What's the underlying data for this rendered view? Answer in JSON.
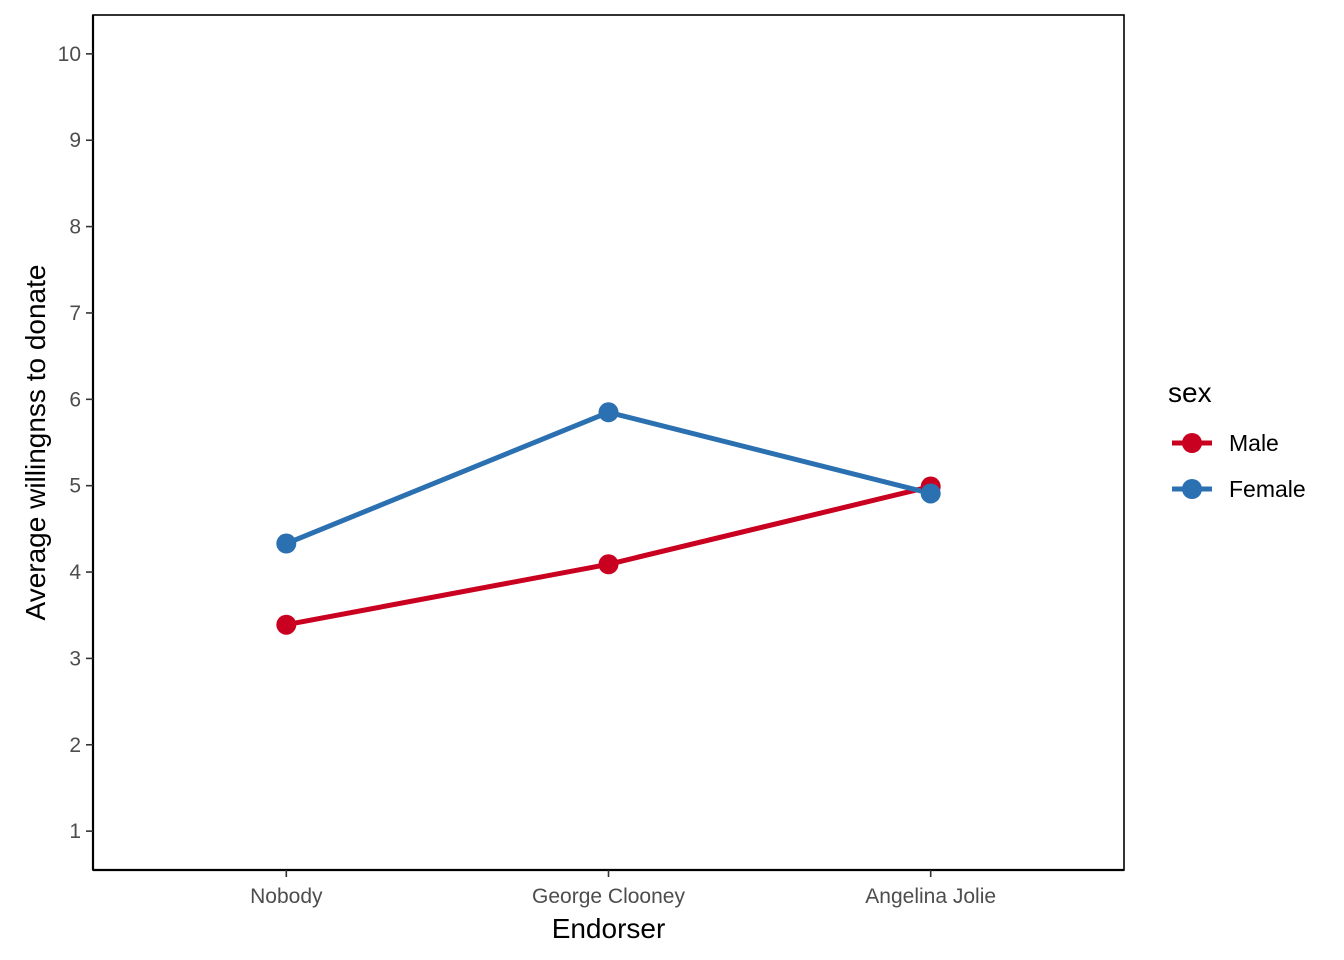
{
  "chart_data": {
    "type": "line",
    "categories": [
      "Nobody",
      "George Clooney",
      "Angelina Jolie"
    ],
    "series": [
      {
        "name": "Male",
        "values": [
          3.39,
          4.09,
          4.99
        ],
        "color": "#ca0020"
      },
      {
        "name": "Female",
        "values": [
          4.33,
          5.85,
          4.91
        ],
        "color": "#2b70b0"
      }
    ],
    "xlabel": "Endorser",
    "ylabel": "Average willingnss to donate",
    "ylim": [
      0.55,
      10.45
    ],
    "yticks": [
      1,
      2,
      3,
      4,
      5,
      6,
      7,
      8,
      9,
      10
    ],
    "grid": false,
    "legend": {
      "title": "sex",
      "position": "right"
    }
  }
}
